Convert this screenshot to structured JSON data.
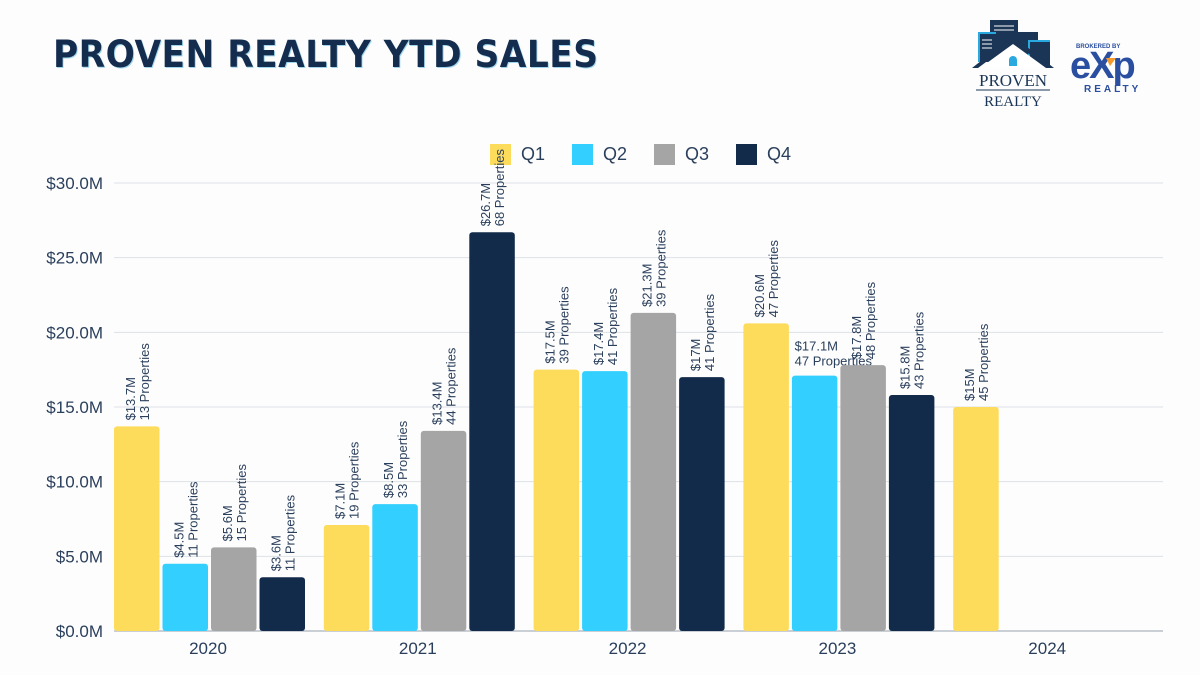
{
  "header": {
    "title": "PROVEN REALTY YTD SALES",
    "logo_proven_line1": "PROVEN",
    "logo_proven_line2": "REALTY",
    "logo_exp_brokered": "BROKERED BY",
    "logo_exp_name": "eXp",
    "logo_exp_realty": "REALTY"
  },
  "colors": {
    "Q1": "#fddc5c",
    "Q2": "#33cfff",
    "Q3": "#a5a5a5",
    "Q4": "#132b4b",
    "label_text": "#2a3f5c",
    "grid": "#dde1e6"
  },
  "chart_data": {
    "type": "bar",
    "title": "PROVEN REALTY YTD SALES",
    "xlabel": "",
    "ylabel": "",
    "categories": [
      "2020",
      "2021",
      "2022",
      "2023",
      "2024"
    ],
    "ylim": [
      0,
      30
    ],
    "yticks": [
      0,
      5,
      10,
      15,
      20,
      25,
      30
    ],
    "ytick_labels": [
      "$0.0M",
      "$5.0M",
      "$10.0M",
      "$15.0M",
      "$20.0M",
      "$25.0M",
      "$30.0M"
    ],
    "grid": true,
    "legend_position": "top-center",
    "series": [
      {
        "name": "Q1",
        "values": [
          13.7,
          7.1,
          17.5,
          20.6,
          15.0
        ],
        "labels": [
          "$13.7M",
          "$7.1M",
          "$17.5M",
          "$20.6M",
          "$15M"
        ],
        "properties": [
          "13 Properties",
          "19 Properties",
          "39 Properties",
          "47  Properties",
          "45 Properties"
        ]
      },
      {
        "name": "Q2",
        "values": [
          4.5,
          8.5,
          17.4,
          17.1,
          null
        ],
        "labels": [
          "$4.5M",
          "$8.5M",
          "$17.4M",
          "$17.1M",
          null
        ],
        "properties": [
          "11 Properties",
          "33  Properties",
          "41 Properties",
          "47  Properties",
          null
        ]
      },
      {
        "name": "Q3",
        "values": [
          5.6,
          13.4,
          21.3,
          17.8,
          null
        ],
        "labels": [
          "$5.6M",
          "$13.4M",
          "$21.3M",
          "$17.8M",
          null
        ],
        "properties": [
          "15 Properties",
          "44  Properties",
          "39 Properties",
          "48 Properties",
          null
        ]
      },
      {
        "name": "Q4",
        "values": [
          3.6,
          26.7,
          17.0,
          15.8,
          null
        ],
        "labels": [
          "$3.6M",
          "$26.7M",
          "$17M",
          "$15.8M",
          null
        ],
        "properties": [
          "11 Properties",
          "68  Properties",
          "41  Properties",
          "43 Properties",
          null
        ]
      }
    ],
    "horizontal_label_series_index": [
      [
        3,
        1
      ]
    ]
  }
}
